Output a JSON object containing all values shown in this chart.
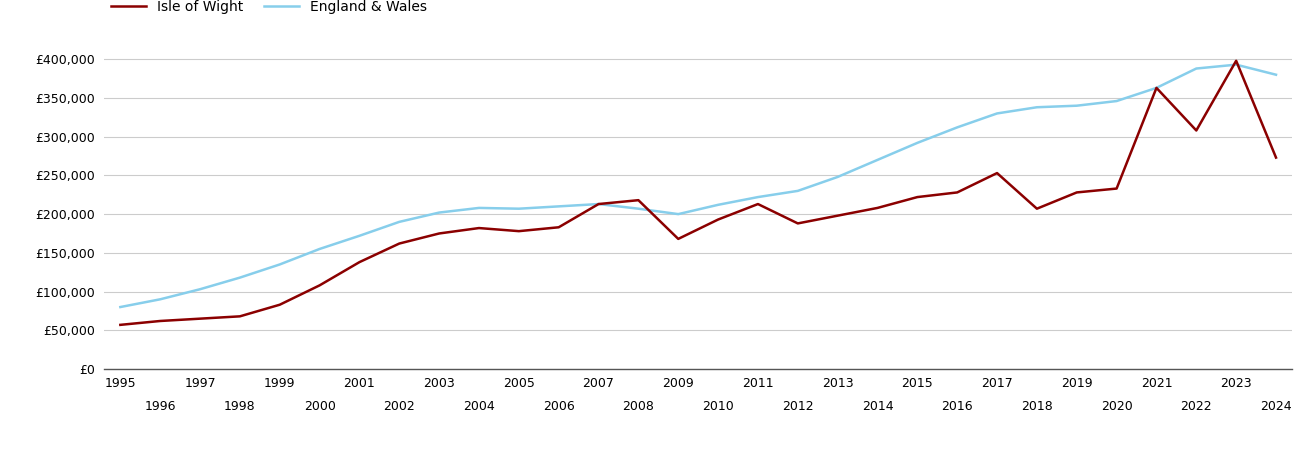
{
  "iow_years": [
    1995,
    1996,
    1997,
    1998,
    1999,
    2000,
    2001,
    2002,
    2003,
    2004,
    2005,
    2006,
    2007,
    2008,
    2009,
    2010,
    2011,
    2012,
    2013,
    2014,
    2015,
    2016,
    2017,
    2018,
    2019,
    2020,
    2021,
    2022,
    2023,
    2024
  ],
  "iow_values": [
    57000,
    62000,
    65000,
    68000,
    83000,
    108000,
    138000,
    162000,
    175000,
    182000,
    178000,
    183000,
    213000,
    218000,
    168000,
    193000,
    213000,
    188000,
    198000,
    208000,
    222000,
    228000,
    253000,
    207000,
    228000,
    233000,
    363000,
    308000,
    398000,
    273000
  ],
  "ew_years": [
    1995,
    1996,
    1997,
    1998,
    1999,
    2000,
    2001,
    2002,
    2003,
    2004,
    2005,
    2006,
    2007,
    2008,
    2009,
    2010,
    2011,
    2012,
    2013,
    2014,
    2015,
    2016,
    2017,
    2018,
    2019,
    2020,
    2021,
    2022,
    2023,
    2024
  ],
  "ew_values": [
    80000,
    90000,
    103000,
    118000,
    135000,
    155000,
    172000,
    190000,
    202000,
    208000,
    207000,
    210000,
    213000,
    207000,
    200000,
    212000,
    222000,
    230000,
    248000,
    270000,
    292000,
    312000,
    330000,
    338000,
    340000,
    346000,
    363000,
    388000,
    393000,
    380000
  ],
  "iow_color": "#8B0000",
  "ew_color": "#87CEEB",
  "iow_label": "Isle of Wight",
  "ew_label": "England & Wales",
  "ylim": [
    0,
    430000
  ],
  "yticks": [
    0,
    50000,
    100000,
    150000,
    200000,
    250000,
    300000,
    350000,
    400000
  ],
  "xlim": [
    1994.6,
    2024.4
  ],
  "line_width": 1.8,
  "bg_color": "#ffffff",
  "grid_color": "#cccccc",
  "odd_years": [
    1995,
    1997,
    1999,
    2001,
    2003,
    2005,
    2007,
    2009,
    2011,
    2013,
    2015,
    2017,
    2019,
    2021,
    2023
  ],
  "even_years": [
    1996,
    1998,
    2000,
    2002,
    2004,
    2006,
    2008,
    2010,
    2012,
    2014,
    2016,
    2018,
    2020,
    2022,
    2024
  ]
}
